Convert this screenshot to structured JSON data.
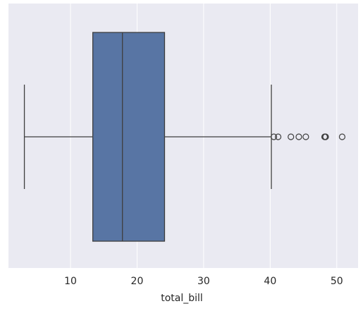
{
  "chart_data": {
    "type": "box",
    "orientation": "horizontal",
    "xlabel": "total_bill",
    "whisker_low": 3.07,
    "q1": 13.35,
    "median": 17.8,
    "q3": 24.13,
    "whisker_high": 40.17,
    "outliers": [
      40.55,
      41.19,
      43.11,
      44.3,
      45.35,
      48.17,
      48.27,
      48.33,
      50.81
    ],
    "color": "#5875a4",
    "edge_color": "#3f3f3f",
    "background": "#eaeaf2",
    "grid": true,
    "xlim": [
      0.68,
      53.2
    ],
    "xticks": [
      10,
      20,
      30,
      40,
      50
    ]
  }
}
